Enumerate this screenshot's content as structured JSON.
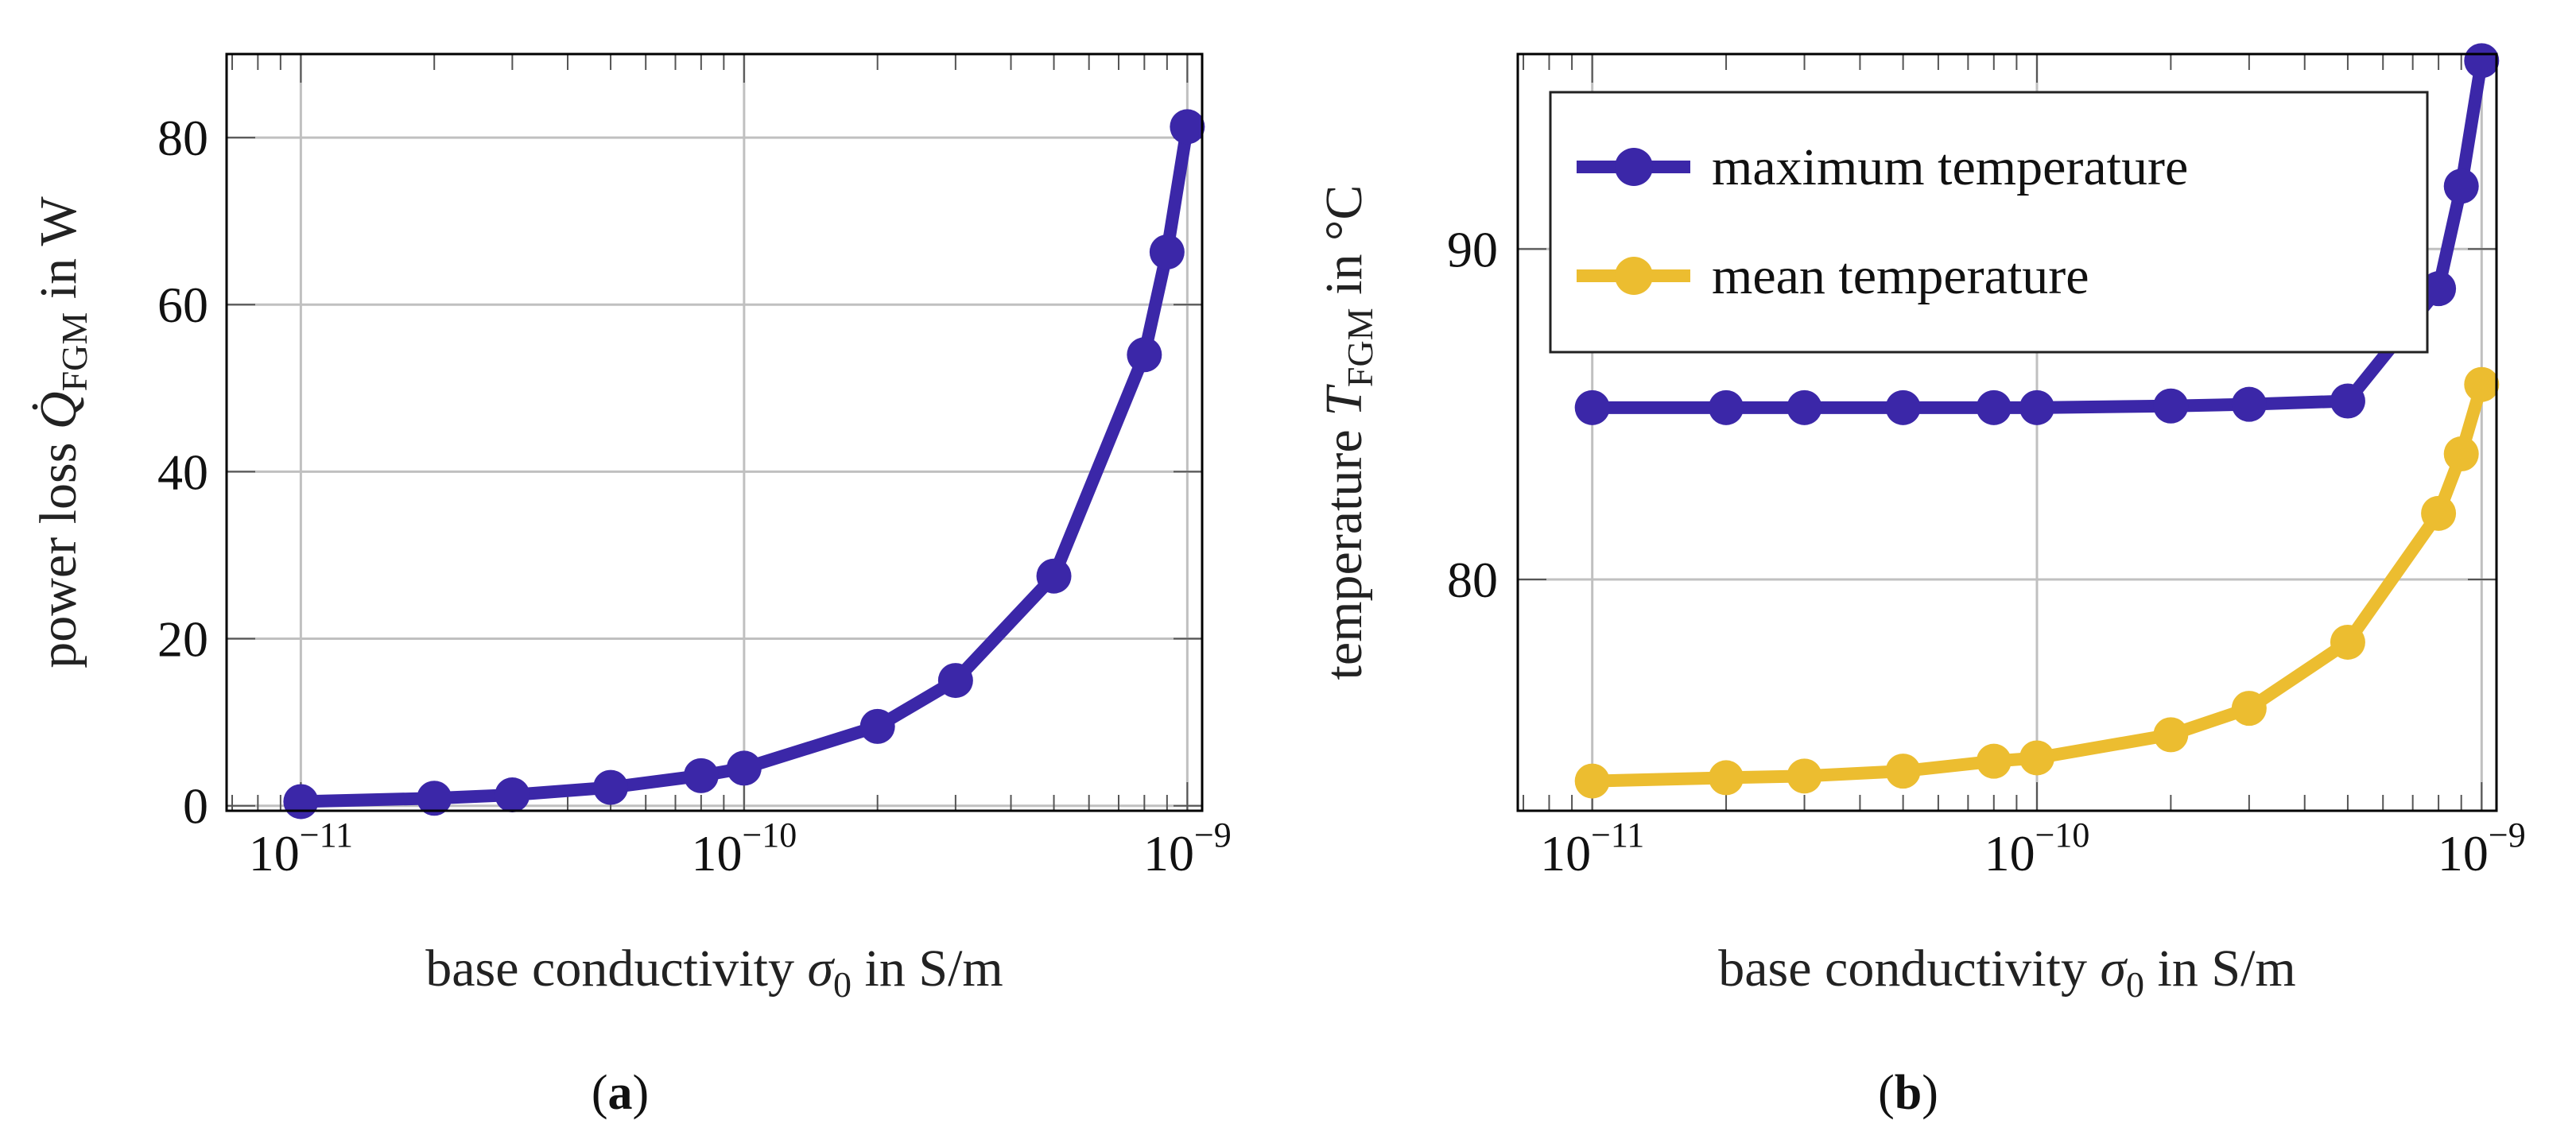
{
  "colors": {
    "max": "#3b27a8",
    "mean": "#ecbd30",
    "grid": "#c0c0c0",
    "axis": "#000000"
  },
  "chart_data": [
    {
      "type": "line",
      "caption": {
        "open": "(",
        "letter": "a",
        "close": ")"
      },
      "xscale": "log",
      "xlim": [
        6.8e-12,
        1.08e-09
      ],
      "ylim": [
        -0.6,
        90
      ],
      "grid": true,
      "xticks": [
        1e-11,
        1e-10,
        1e-09
      ],
      "xtick_labels": [
        {
          "base": "10",
          "exp": "−11"
        },
        {
          "base": "10",
          "exp": "−10"
        },
        {
          "base": "10",
          "exp": "−9"
        }
      ],
      "yticks": [
        0,
        20,
        40,
        60,
        80
      ],
      "ytick_labels": [
        "0",
        "20",
        "40",
        "60",
        "80"
      ],
      "xlabel": {
        "text": "base conductivity ",
        "symbol": "σ",
        "sub": "0",
        "suffix": " in S/m"
      },
      "ylabel": {
        "text": "power loss ",
        "symbol": "Q̇",
        "sub": "FGM",
        "suffix": " in W"
      },
      "x": [
        1e-11,
        2e-11,
        3e-11,
        5e-11,
        8e-11,
        1e-10,
        2e-10,
        3e-10,
        5e-10,
        8e-10,
        9e-10,
        1e-09
      ],
      "series": [
        {
          "color_key": "max",
          "values": [
            0.5,
            0.9,
            1.3,
            2.2,
            3.6,
            4.5,
            9.5,
            15.0,
            27.5,
            54.0,
            66.3,
            81.3
          ]
        }
      ]
    },
    {
      "type": "line",
      "caption": {
        "open": "(",
        "letter": "b",
        "close": ")"
      },
      "xscale": "log",
      "xlim": [
        6.8e-12,
        1.08e-09
      ],
      "ylim": [
        73.0,
        95.9
      ],
      "grid": true,
      "xticks": [
        1e-11,
        1e-10,
        1e-09
      ],
      "xtick_labels": [
        {
          "base": "10",
          "exp": "−11"
        },
        {
          "base": "10",
          "exp": "−10"
        },
        {
          "base": "10",
          "exp": "−9"
        }
      ],
      "yticks": [
        80,
        90
      ],
      "ytick_labels": [
        "80",
        "90"
      ],
      "xlabel": {
        "text": "base conductivity ",
        "symbol": "σ",
        "sub": "0",
        "suffix": " in S/m"
      },
      "ylabel": {
        "text": "temperature ",
        "symbol": "T",
        "sub": "FGM",
        "suffix": " in °C"
      },
      "legend_position": "top-left",
      "x": [
        1e-11,
        2e-11,
        3e-11,
        5e-11,
        8e-11,
        1e-10,
        2e-10,
        3e-10,
        5e-10,
        8e-10,
        9e-10,
        1e-09
      ],
      "series": [
        {
          "name": "maximum temperature",
          "color_key": "max",
          "values": [
            85.2,
            85.2,
            85.2,
            85.2,
            85.2,
            85.2,
            85.25,
            85.3,
            85.4,
            88.8,
            91.9,
            95.7
          ]
        },
        {
          "name": "mean temperature",
          "color_key": "mean",
          "values": [
            73.9,
            74.0,
            74.05,
            74.2,
            74.5,
            74.6,
            75.3,
            76.1,
            78.1,
            82.0,
            83.8,
            85.9
          ]
        }
      ]
    }
  ]
}
